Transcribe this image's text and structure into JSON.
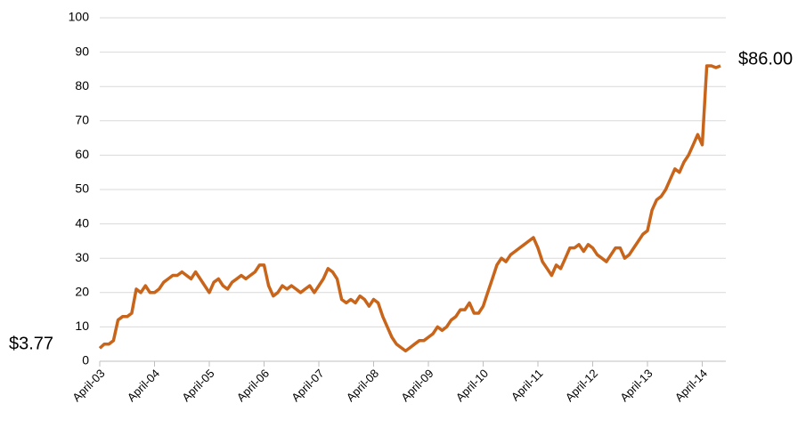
{
  "chart_data": {
    "type": "line",
    "categories": [
      "April-03",
      null,
      null,
      null,
      null,
      null,
      null,
      null,
      null,
      null,
      null,
      null,
      "April-04",
      null,
      null,
      null,
      null,
      null,
      null,
      null,
      null,
      null,
      null,
      null,
      "April-05",
      null,
      null,
      null,
      null,
      null,
      null,
      null,
      null,
      null,
      null,
      null,
      "April-06",
      null,
      null,
      null,
      null,
      null,
      null,
      null,
      null,
      null,
      null,
      null,
      "April-07",
      null,
      null,
      null,
      null,
      null,
      null,
      null,
      null,
      null,
      null,
      null,
      "April-08",
      null,
      null,
      null,
      null,
      null,
      null,
      null,
      null,
      null,
      null,
      null,
      "April-09",
      null,
      null,
      null,
      null,
      null,
      null,
      null,
      null,
      null,
      null,
      null,
      "April-10",
      null,
      null,
      null,
      null,
      null,
      null,
      null,
      null,
      null,
      null,
      null,
      "April-11",
      null,
      null,
      null,
      null,
      null,
      null,
      null,
      null,
      null,
      null,
      null,
      "April-12",
      null,
      null,
      null,
      null,
      null,
      null,
      null,
      null,
      null,
      null,
      null,
      "April-13",
      null,
      null,
      null,
      null,
      null,
      null,
      null,
      null,
      null,
      null,
      null,
      "April-14",
      null,
      null,
      null,
      null
    ],
    "values": [
      3.77,
      5,
      5,
      6,
      12,
      13,
      13,
      14,
      21,
      20,
      22,
      20,
      20,
      21,
      23,
      24,
      25,
      25,
      26,
      25,
      24,
      26,
      24,
      22,
      20,
      23,
      24,
      22,
      21,
      23,
      24,
      25,
      24,
      25,
      26,
      28,
      28,
      22,
      19,
      20,
      22,
      21,
      22,
      21,
      20,
      21,
      22,
      20,
      22,
      24,
      27,
      26,
      24,
      18,
      17,
      18,
      17,
      19,
      18,
      16,
      18,
      17,
      13,
      10,
      7,
      5,
      4,
      3,
      4,
      5,
      6,
      6,
      7,
      8,
      10,
      9,
      10,
      12,
      13,
      15,
      15,
      17,
      14,
      14,
      16,
      20,
      24,
      28,
      30,
      29,
      31,
      32,
      33,
      34,
      35,
      36,
      33,
      29,
      27,
      25,
      28,
      27,
      30,
      33,
      33,
      34,
      32,
      34,
      33,
      31,
      30,
      29,
      31,
      33,
      33,
      30,
      31,
      33,
      35,
      37,
      38,
      44,
      47,
      48,
      50,
      53,
      56,
      55,
      58,
      60,
      63,
      66,
      63,
      86,
      86,
      85.5,
      86
    ],
    "value_labels": [
      "$3.77",
      null,
      null,
      null,
      null,
      null,
      null,
      null,
      null,
      null,
      null,
      null,
      null,
      null,
      null,
      null,
      null,
      null,
      null,
      null,
      null,
      null,
      null,
      null,
      null,
      null,
      null,
      null,
      null,
      null,
      null,
      null,
      null,
      null,
      null,
      null,
      null,
      null,
      null,
      null,
      null,
      null,
      null,
      null,
      null,
      null,
      null,
      null,
      null,
      null,
      null,
      null,
      null,
      null,
      null,
      null,
      null,
      null,
      null,
      null,
      null,
      null,
      null,
      null,
      null,
      null,
      null,
      null,
      null,
      null,
      null,
      null,
      null,
      null,
      null,
      null,
      null,
      null,
      null,
      null,
      null,
      null,
      null,
      null,
      null,
      null,
      null,
      null,
      null,
      null,
      null,
      null,
      null,
      null,
      null,
      null,
      null,
      null,
      null,
      null,
      null,
      null,
      null,
      null,
      null,
      null,
      null,
      null,
      null,
      null,
      null,
      null,
      null,
      null,
      null,
      null,
      null,
      null,
      null,
      null,
      null,
      null,
      null,
      null,
      null,
      null,
      null,
      null,
      null,
      null,
      null,
      null,
      null,
      null,
      null,
      null,
      "$86.00"
    ],
    "color": "#c8651b",
    "ylim": [
      0,
      100
    ],
    "yticks": [
      0,
      10,
      20,
      30,
      40,
      50,
      60,
      70,
      80,
      90,
      100
    ],
    "grid": true
  }
}
